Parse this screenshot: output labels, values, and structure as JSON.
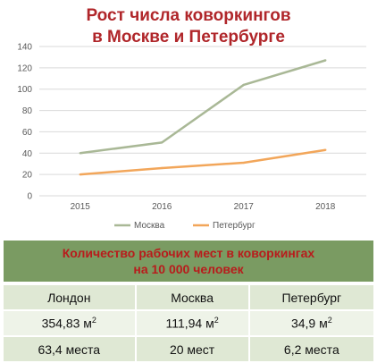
{
  "header": {
    "title_line1": "Рост числа коворкингов",
    "title_line2": "в Москве и Петербурге"
  },
  "colors": {
    "title": "#b0262a",
    "moscow_series": "#a9b896",
    "spb_series": "#f2a65a",
    "banner_bg": "#7a9b62",
    "banner_text": "#b81c1c",
    "row_bg": "#dfe8d4"
  },
  "chart_data": {
    "type": "line",
    "x": [
      "2015",
      "2016",
      "2017",
      "2018"
    ],
    "ylim": [
      0,
      140
    ],
    "yticks": [
      0,
      20,
      40,
      60,
      80,
      100,
      120,
      140
    ],
    "grid": "horizontal",
    "legend_position": "bottom",
    "series": [
      {
        "name": "Москва",
        "values": [
          40,
          50,
          104,
          127
        ],
        "color": "#a9b896"
      },
      {
        "name": "Петербург",
        "values": [
          20,
          26,
          31,
          43
        ],
        "color": "#f2a65a"
      }
    ]
  },
  "table": {
    "banner_line1": "Количество рабочих мест в коворкингах",
    "banner_line2": "на 10 000 человек",
    "cities": [
      "Лондон",
      "Москва",
      "Петербург"
    ],
    "area": [
      {
        "value": "354,83 м",
        "sup": "2"
      },
      {
        "value": "111,94 м",
        "sup": "2"
      },
      {
        "value": "34,9 м",
        "sup": "2"
      }
    ],
    "places": [
      "63,4 места",
      "20 мест",
      "6,2 места"
    ]
  }
}
